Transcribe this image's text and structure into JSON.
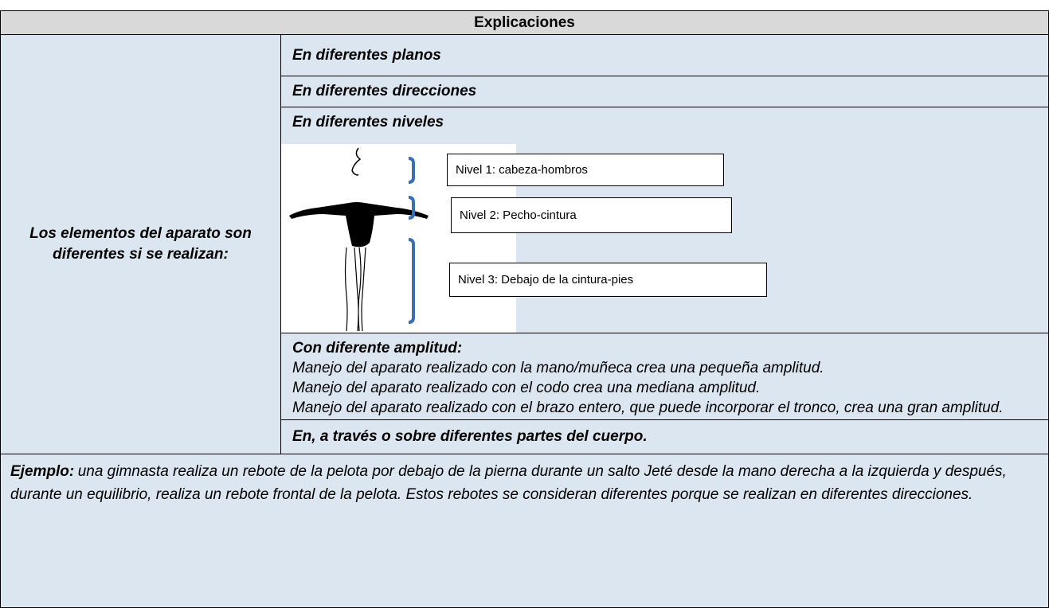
{
  "header": {
    "title": "Explicaciones"
  },
  "table": {
    "left_cell": "Los elementos del aparato son diferentes si se realizan:",
    "rows": [
      "En diferentes planos",
      "En diferentes direcciones",
      "En diferentes niveles"
    ],
    "levels": [
      "Nivel 1: cabeza-hombros",
      "Nivel 2: Pecho-cintura",
      "Nivel 3: Debajo de la cintura-pies"
    ],
    "amplitude": {
      "title": "Con diferente amplitud:",
      "lines": [
        "Manejo del aparato realizado con la mano/muñeca crea una pequeña amplitud.",
        "Manejo del aparato realizado con el codo crea una mediana amplitud.",
        "Manejo del aparato realizado con el brazo entero, que puede incorporar el tronco, crea una gran amplitud."
      ]
    },
    "body_parts": "En, a través o sobre diferentes partes del cuerpo."
  },
  "example": {
    "label": "Ejemplo:",
    "text": "una gimnasta realiza un rebote de la pelota por debajo de la pierna durante un salto Jeté desde la mano derecha a la izquierda y después, durante un equilibrio, realiza un rebote frontal de la pelota. Estos rebotes se consideran diferentes porque se realizan en diferentes direcciones."
  }
}
